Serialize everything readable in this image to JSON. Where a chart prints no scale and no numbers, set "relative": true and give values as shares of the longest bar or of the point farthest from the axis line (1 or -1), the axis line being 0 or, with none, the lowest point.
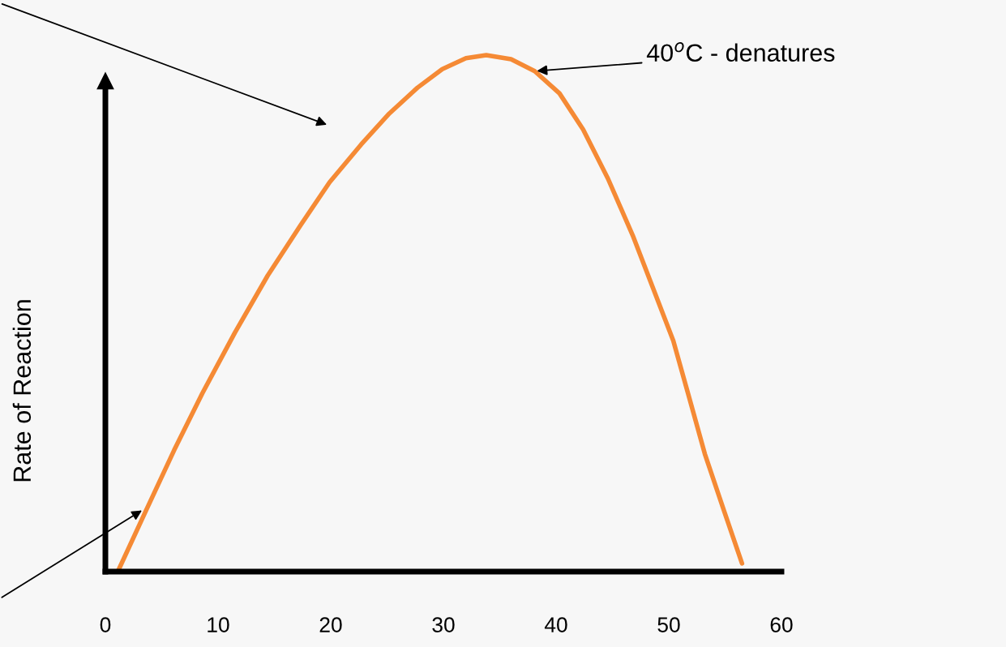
{
  "chart_data": {
    "type": "line",
    "relative": true,
    "ylabel": "Rate of Reaction",
    "xlim": [
      0,
      60
    ],
    "xticks": [
      0,
      10,
      20,
      30,
      40,
      50,
      60
    ],
    "annotations": [
      {
        "text": "40$^{o}$C - denatures",
        "x": 38.1,
        "y": 0.969
      }
    ],
    "series": [
      {
        "color": "#f58a35",
        "x": [
          1.1,
          3.6,
          6.1,
          8.6,
          11.5,
          14.4,
          17.3,
          19.9,
          22.7,
          25.2,
          27.7,
          29.9,
          32.0,
          33.8,
          36.0,
          38.1,
          40.3,
          42.4,
          44.6,
          46.8,
          48.6,
          50.4,
          51.8,
          53.2,
          54.9,
          56.5
        ],
        "values": [
          0,
          0.118,
          0.235,
          0.345,
          0.463,
          0.573,
          0.67,
          0.754,
          0.827,
          0.887,
          0.937,
          0.973,
          0.994,
          1.0,
          0.992,
          0.969,
          0.926,
          0.856,
          0.761,
          0.651,
          0.549,
          0.447,
          0.338,
          0.228,
          0.118,
          0.016
        ]
      }
    ],
    "grid": false,
    "marker": "none",
    "line_style": "solid"
  }
}
